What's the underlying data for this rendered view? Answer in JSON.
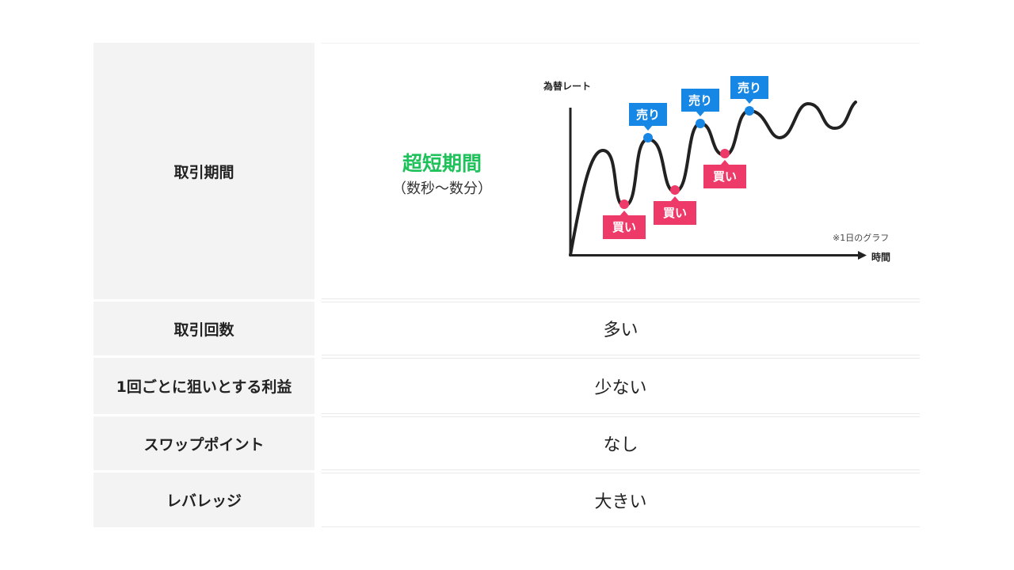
{
  "rows": [
    {
      "label": "取引期間"
    },
    {
      "label": "取引回数",
      "value": "多い"
    },
    {
      "label": "1回ごとに狙いとする利益",
      "value": "少ない"
    },
    {
      "label": "スワップポイント",
      "value": "なし"
    },
    {
      "label": "レバレッジ",
      "value": "大きい"
    }
  ],
  "period": {
    "title": "超短期間",
    "subtitle": "（数秒〜数分）"
  },
  "diagram": {
    "y_axis_label": "為替レート",
    "x_axis_label": "時間",
    "note": "※1日のグラフ",
    "sell_label": "売り",
    "buy_label": "買い",
    "colors": {
      "sell": "#1787e6",
      "buy": "#ee3a68",
      "line": "#222222",
      "accent": "#1fc15b"
    }
  }
}
